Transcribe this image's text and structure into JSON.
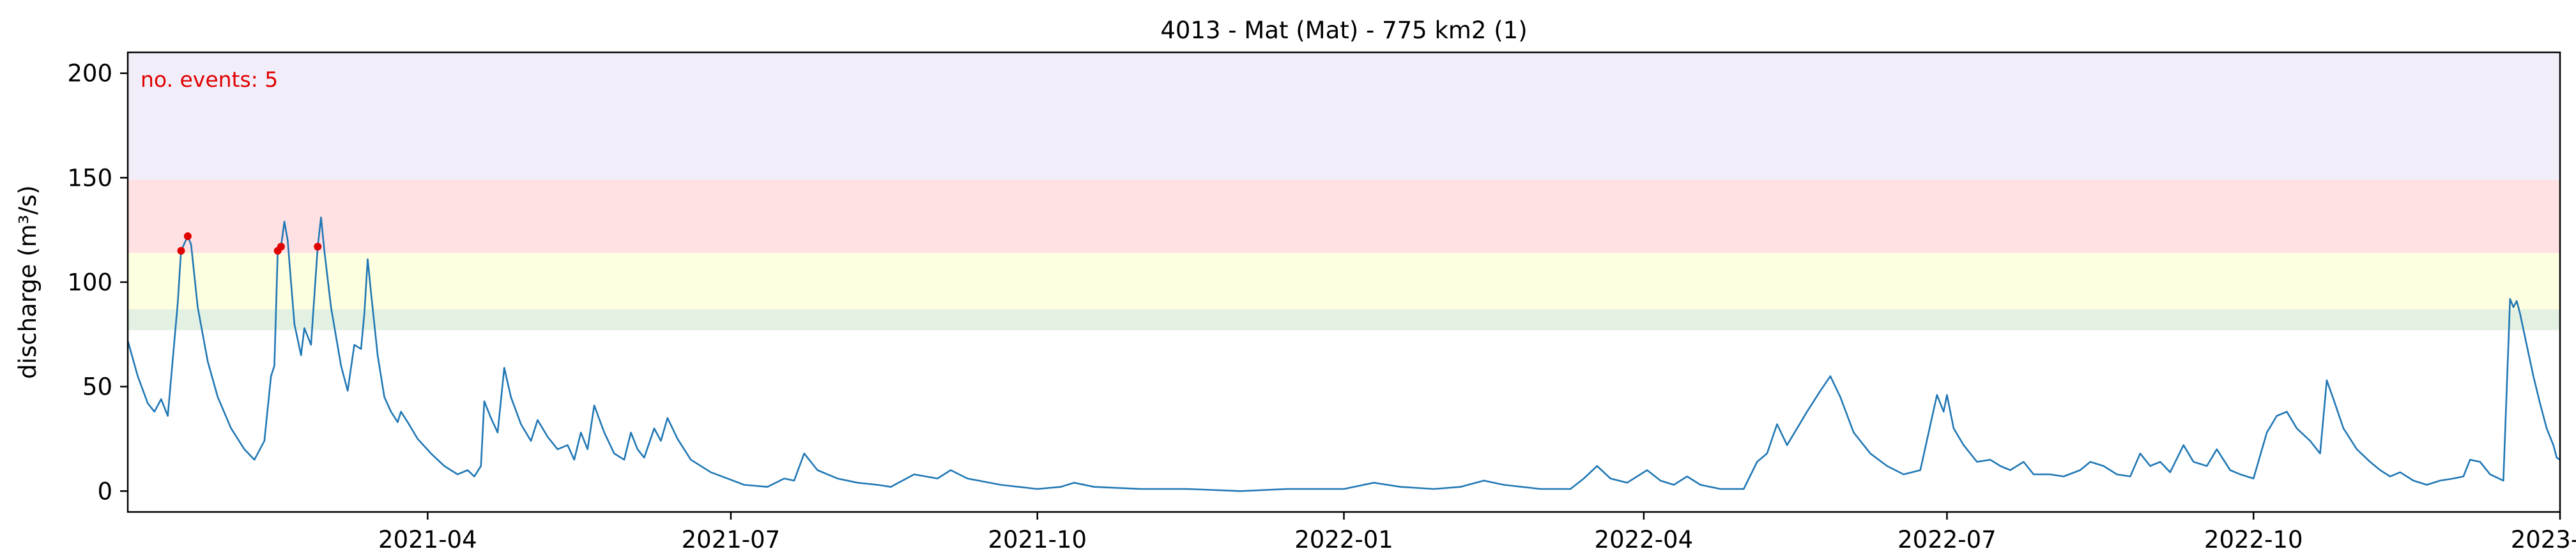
{
  "chart_data": {
    "type": "line",
    "title": "4013 - Mat (Mat) - 775 km2 (1)",
    "xlabel": "",
    "ylabel": "discharge (m³/s)",
    "xlim": [
      "2021-01-01",
      "2023-01-01"
    ],
    "ylim": [
      -10,
      210
    ],
    "yticks": [
      0,
      50,
      100,
      150,
      200
    ],
    "xticks": [
      {
        "date": "2021-04-01",
        "label": "2021-04"
      },
      {
        "date": "2021-07-01",
        "label": "2021-07"
      },
      {
        "date": "2021-10-01",
        "label": "2021-10"
      },
      {
        "date": "2022-01-01",
        "label": "2022-01"
      },
      {
        "date": "2022-04-01",
        "label": "2022-04"
      },
      {
        "date": "2022-07-01",
        "label": "2022-07"
      },
      {
        "date": "2022-10-01",
        "label": "2022-10"
      },
      {
        "date": "2023-01-01",
        "label": "2023-01"
      }
    ],
    "annotation": "no. events: 5",
    "annotation_color": "#e00000",
    "line_color": "#1f77b4",
    "event_color": "#e00000",
    "threshold_bands": [
      {
        "name": "band-1",
        "from": 77,
        "to": 87,
        "color": "#e3f1e3"
      },
      {
        "name": "band-2",
        "from": 87,
        "to": 114,
        "color": "#fefee0"
      },
      {
        "name": "band-3",
        "from": 114,
        "to": 149,
        "color": "#ffe1e3"
      },
      {
        "name": "band-4",
        "from": 149,
        "to": 210,
        "color": "#f1eefa"
      }
    ],
    "series": [
      {
        "name": "discharge",
        "points": [
          [
            "2021-01-01",
            72
          ],
          [
            "2021-01-04",
            55
          ],
          [
            "2021-01-07",
            42
          ],
          [
            "2021-01-09",
            38
          ],
          [
            "2021-01-11",
            44
          ],
          [
            "2021-01-13",
            36
          ],
          [
            "2021-01-16",
            90
          ],
          [
            "2021-01-17",
            115
          ],
          [
            "2021-01-19",
            122
          ],
          [
            "2021-01-20",
            118
          ],
          [
            "2021-01-22",
            88
          ],
          [
            "2021-01-25",
            62
          ],
          [
            "2021-01-28",
            45
          ],
          [
            "2021-02-01",
            30
          ],
          [
            "2021-02-05",
            20
          ],
          [
            "2021-02-08",
            15
          ],
          [
            "2021-02-11",
            24
          ],
          [
            "2021-02-13",
            55
          ],
          [
            "2021-02-14",
            60
          ],
          [
            "2021-02-15",
            115
          ],
          [
            "2021-02-16",
            117
          ],
          [
            "2021-02-17",
            129
          ],
          [
            "2021-02-18",
            120
          ],
          [
            "2021-02-19",
            100
          ],
          [
            "2021-02-20",
            80
          ],
          [
            "2021-02-22",
            65
          ],
          [
            "2021-02-23",
            78
          ],
          [
            "2021-02-25",
            70
          ],
          [
            "2021-02-27",
            117
          ],
          [
            "2021-02-28",
            131
          ],
          [
            "2021-03-01",
            115
          ],
          [
            "2021-03-03",
            88
          ],
          [
            "2021-03-06",
            60
          ],
          [
            "2021-03-08",
            48
          ],
          [
            "2021-03-10",
            70
          ],
          [
            "2021-03-12",
            68
          ],
          [
            "2021-03-13",
            85
          ],
          [
            "2021-03-14",
            111
          ],
          [
            "2021-03-15",
            95
          ],
          [
            "2021-03-17",
            65
          ],
          [
            "2021-03-19",
            45
          ],
          [
            "2021-03-21",
            38
          ],
          [
            "2021-03-23",
            33
          ],
          [
            "2021-03-24",
            38
          ],
          [
            "2021-03-26",
            33
          ],
          [
            "2021-03-29",
            25
          ],
          [
            "2021-04-02",
            18
          ],
          [
            "2021-04-06",
            12
          ],
          [
            "2021-04-10",
            8
          ],
          [
            "2021-04-13",
            10
          ],
          [
            "2021-04-15",
            7
          ],
          [
            "2021-04-17",
            12
          ],
          [
            "2021-04-18",
            43
          ],
          [
            "2021-04-20",
            35
          ],
          [
            "2021-04-22",
            28
          ],
          [
            "2021-04-24",
            59
          ],
          [
            "2021-04-26",
            45
          ],
          [
            "2021-04-29",
            32
          ],
          [
            "2021-05-02",
            24
          ],
          [
            "2021-05-04",
            34
          ],
          [
            "2021-05-07",
            26
          ],
          [
            "2021-05-10",
            20
          ],
          [
            "2021-05-13",
            22
          ],
          [
            "2021-05-15",
            15
          ],
          [
            "2021-05-17",
            28
          ],
          [
            "2021-05-19",
            20
          ],
          [
            "2021-05-21",
            41
          ],
          [
            "2021-05-24",
            28
          ],
          [
            "2021-05-27",
            18
          ],
          [
            "2021-05-30",
            15
          ],
          [
            "2021-06-01",
            28
          ],
          [
            "2021-06-03",
            20
          ],
          [
            "2021-06-05",
            16
          ],
          [
            "2021-06-08",
            30
          ],
          [
            "2021-06-10",
            24
          ],
          [
            "2021-06-12",
            35
          ],
          [
            "2021-06-15",
            25
          ],
          [
            "2021-06-19",
            15
          ],
          [
            "2021-06-25",
            9
          ],
          [
            "2021-07-05",
            3
          ],
          [
            "2021-07-12",
            2
          ],
          [
            "2021-07-17",
            6
          ],
          [
            "2021-07-20",
            5
          ],
          [
            "2021-07-23",
            18
          ],
          [
            "2021-07-27",
            10
          ],
          [
            "2021-08-02",
            6
          ],
          [
            "2021-08-08",
            4
          ],
          [
            "2021-08-14",
            3
          ],
          [
            "2021-08-18",
            2
          ],
          [
            "2021-08-25",
            8
          ],
          [
            "2021-09-01",
            6
          ],
          [
            "2021-09-05",
            10
          ],
          [
            "2021-09-10",
            6
          ],
          [
            "2021-09-20",
            3
          ],
          [
            "2021-10-01",
            1
          ],
          [
            "2021-10-08",
            2
          ],
          [
            "2021-10-12",
            4
          ],
          [
            "2021-10-18",
            2
          ],
          [
            "2021-11-01",
            1
          ],
          [
            "2021-11-15",
            1
          ],
          [
            "2021-12-01",
            0
          ],
          [
            "2021-12-15",
            1
          ],
          [
            "2022-01-01",
            1
          ],
          [
            "2022-01-10",
            4
          ],
          [
            "2022-01-18",
            2
          ],
          [
            "2022-01-28",
            1
          ],
          [
            "2022-02-05",
            2
          ],
          [
            "2022-02-12",
            5
          ],
          [
            "2022-02-18",
            3
          ],
          [
            "2022-03-01",
            1
          ],
          [
            "2022-03-10",
            1
          ],
          [
            "2022-03-14",
            6
          ],
          [
            "2022-03-18",
            12
          ],
          [
            "2022-03-22",
            6
          ],
          [
            "2022-03-27",
            4
          ],
          [
            "2022-04-02",
            10
          ],
          [
            "2022-04-06",
            5
          ],
          [
            "2022-04-10",
            3
          ],
          [
            "2022-04-14",
            7
          ],
          [
            "2022-04-18",
            3
          ],
          [
            "2022-04-24",
            1
          ],
          [
            "2022-05-01",
            1
          ],
          [
            "2022-05-05",
            14
          ],
          [
            "2022-05-08",
            18
          ],
          [
            "2022-05-11",
            32
          ],
          [
            "2022-05-14",
            22
          ],
          [
            "2022-05-20",
            38
          ],
          [
            "2022-05-24",
            48
          ],
          [
            "2022-05-27",
            55
          ],
          [
            "2022-05-30",
            45
          ],
          [
            "2022-06-03",
            28
          ],
          [
            "2022-06-08",
            18
          ],
          [
            "2022-06-13",
            12
          ],
          [
            "2022-06-18",
            8
          ],
          [
            "2022-06-23",
            10
          ],
          [
            "2022-06-28",
            46
          ],
          [
            "2022-06-30",
            38
          ],
          [
            "2022-07-01",
            46
          ],
          [
            "2022-07-03",
            30
          ],
          [
            "2022-07-06",
            22
          ],
          [
            "2022-07-10",
            14
          ],
          [
            "2022-07-14",
            15
          ],
          [
            "2022-07-17",
            12
          ],
          [
            "2022-07-20",
            10
          ],
          [
            "2022-07-24",
            14
          ],
          [
            "2022-07-27",
            8
          ],
          [
            "2022-08-01",
            8
          ],
          [
            "2022-08-05",
            7
          ],
          [
            "2022-08-10",
            10
          ],
          [
            "2022-08-13",
            14
          ],
          [
            "2022-08-17",
            12
          ],
          [
            "2022-08-21",
            8
          ],
          [
            "2022-08-25",
            7
          ],
          [
            "2022-08-28",
            18
          ],
          [
            "2022-08-31",
            12
          ],
          [
            "2022-09-03",
            14
          ],
          [
            "2022-09-06",
            9
          ],
          [
            "2022-09-10",
            22
          ],
          [
            "2022-09-13",
            14
          ],
          [
            "2022-09-17",
            12
          ],
          [
            "2022-09-20",
            20
          ],
          [
            "2022-09-24",
            10
          ],
          [
            "2022-09-27",
            8
          ],
          [
            "2022-10-01",
            6
          ],
          [
            "2022-10-05",
            28
          ],
          [
            "2022-10-08",
            36
          ],
          [
            "2022-10-11",
            38
          ],
          [
            "2022-10-14",
            30
          ],
          [
            "2022-10-18",
            24
          ],
          [
            "2022-10-21",
            18
          ],
          [
            "2022-10-23",
            53
          ],
          [
            "2022-10-25",
            44
          ],
          [
            "2022-10-28",
            30
          ],
          [
            "2022-11-01",
            20
          ],
          [
            "2022-11-05",
            14
          ],
          [
            "2022-11-08",
            10
          ],
          [
            "2022-11-11",
            7
          ],
          [
            "2022-11-14",
            9
          ],
          [
            "2022-11-18",
            5
          ],
          [
            "2022-11-22",
            3
          ],
          [
            "2022-11-26",
            5
          ],
          [
            "2022-11-30",
            6
          ],
          [
            "2022-12-03",
            7
          ],
          [
            "2022-12-05",
            15
          ],
          [
            "2022-12-08",
            14
          ],
          [
            "2022-12-11",
            8
          ],
          [
            "2022-12-15",
            5
          ],
          [
            "2022-12-17",
            92
          ],
          [
            "2022-12-18",
            88
          ],
          [
            "2022-12-19",
            91
          ],
          [
            "2022-12-20",
            85
          ],
          [
            "2022-12-22",
            70
          ],
          [
            "2022-12-24",
            55
          ],
          [
            "2022-12-26",
            42
          ],
          [
            "2022-12-28",
            30
          ],
          [
            "2022-12-30",
            22
          ],
          [
            "2022-12-31",
            16
          ],
          [
            "2023-01-01",
            15
          ]
        ]
      }
    ],
    "events": [
      {
        "date": "2021-01-17",
        "value": 115
      },
      {
        "date": "2021-01-19",
        "value": 122
      },
      {
        "date": "2021-02-15",
        "value": 115
      },
      {
        "date": "2021-02-16",
        "value": 117
      },
      {
        "date": "2021-02-27",
        "value": 117
      }
    ]
  }
}
